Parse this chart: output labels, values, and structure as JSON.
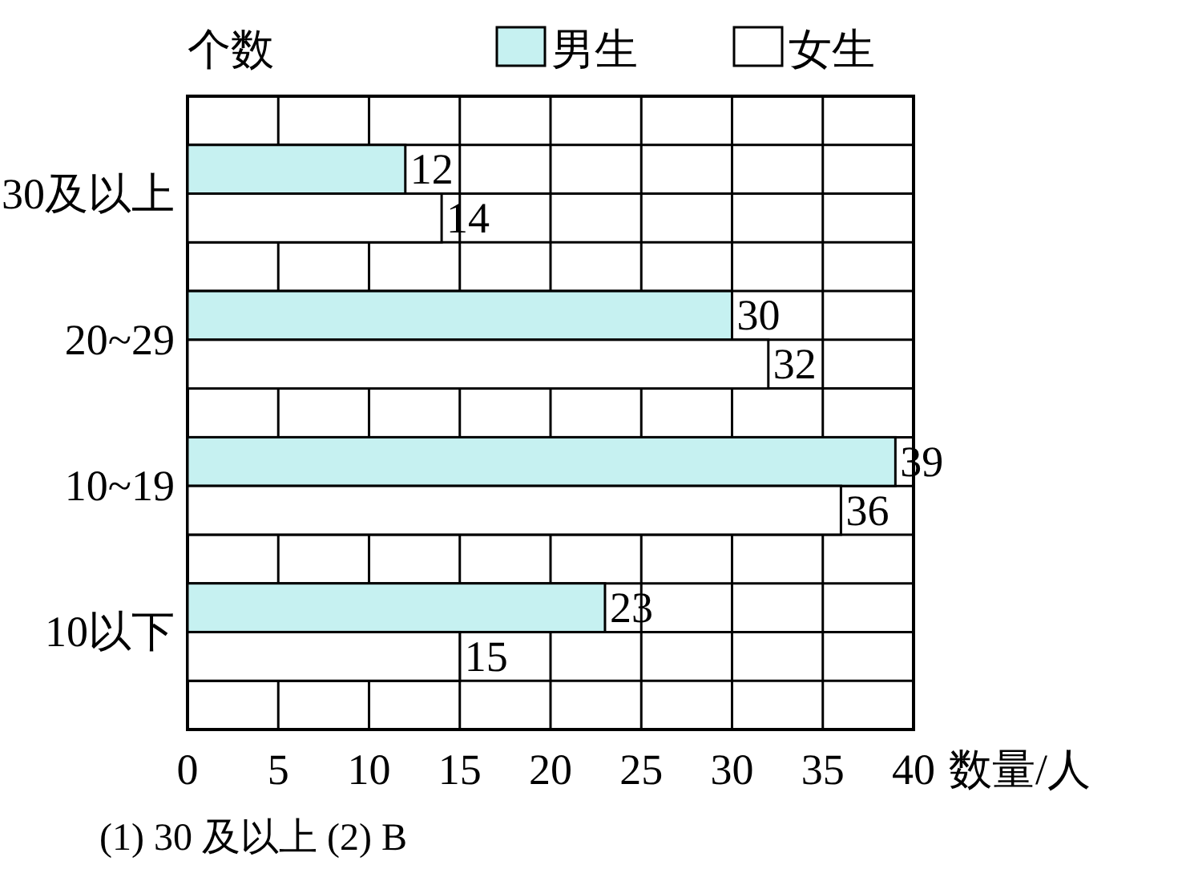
{
  "chart_data": {
    "type": "bar",
    "orientation": "horizontal",
    "ylabel": "个数",
    "xlabel": "数量/人",
    "categories": [
      "30及以上",
      "20~29",
      "10~19",
      "10以下"
    ],
    "series": [
      {
        "name": "男生",
        "color": "#c6f1f1",
        "values": [
          12,
          30,
          39,
          23
        ]
      },
      {
        "name": "女生",
        "color": "#ffffff",
        "values": [
          14,
          32,
          36,
          15
        ]
      }
    ],
    "xlim": [
      0,
      40
    ],
    "xticks": [
      0,
      5,
      10,
      15,
      20,
      25,
      30,
      35,
      40
    ],
    "grid": true,
    "legend": "top",
    "data_labels": true,
    "annotations": [
      "(1) 30 及以上  (2) B"
    ]
  }
}
